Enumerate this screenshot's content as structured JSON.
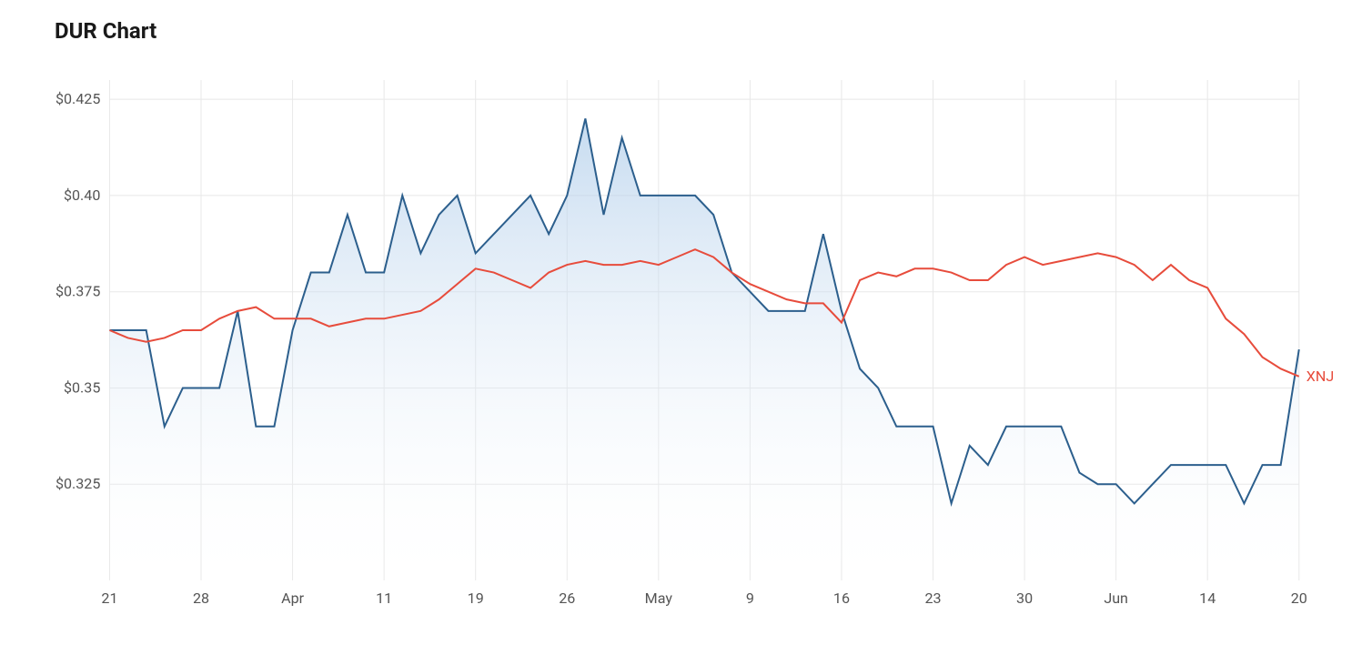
{
  "chart": {
    "title": "DUR Chart",
    "type": "area-line",
    "background_color": "#ffffff",
    "grid_color": "#e8e8e8",
    "text_color": "#555555",
    "title_color": "#1a1a1a",
    "title_fontsize": 24,
    "label_fontsize": 16,
    "y_axis": {
      "min": 0.3,
      "max": 0.43,
      "ticks": [
        0.325,
        0.35,
        0.375,
        0.4,
        0.425
      ],
      "tick_labels": [
        "$0.325",
        "$0.35",
        "$0.375",
        "$0.40",
        "$0.425"
      ]
    },
    "x_axis": {
      "ticks": [
        0,
        5,
        10,
        15,
        20,
        25,
        30,
        35,
        40,
        45,
        50,
        55,
        60,
        65
      ],
      "tick_labels": [
        "21",
        "28",
        "Apr",
        "11",
        "19",
        "26",
        "May",
        "9",
        "16",
        "23",
        "30",
        "Jun",
        "14",
        "20"
      ]
    },
    "series_primary": {
      "name": "DUR",
      "type": "area",
      "line_color": "#2c5f8d",
      "fill_color_top": "#a8c8e8",
      "fill_color_bottom": "#ffffff",
      "fill_opacity": 0.6,
      "line_width": 2,
      "data": [
        0.365,
        0.365,
        0.365,
        0.34,
        0.35,
        0.35,
        0.35,
        0.37,
        0.34,
        0.34,
        0.365,
        0.38,
        0.38,
        0.395,
        0.38,
        0.38,
        0.4,
        0.385,
        0.395,
        0.4,
        0.385,
        0.39,
        0.395,
        0.4,
        0.39,
        0.4,
        0.42,
        0.395,
        0.415,
        0.4,
        0.4,
        0.4,
        0.4,
        0.395,
        0.38,
        0.375,
        0.37,
        0.37,
        0.37,
        0.39,
        0.37,
        0.355,
        0.35,
        0.34,
        0.34,
        0.34,
        0.32,
        0.335,
        0.33,
        0.34,
        0.34,
        0.34,
        0.34,
        0.328,
        0.325,
        0.325,
        0.32,
        0.325,
        0.33,
        0.33,
        0.33,
        0.33,
        0.32,
        0.33,
        0.33,
        0.36
      ]
    },
    "series_secondary": {
      "name": "XNJ",
      "label": "XNJ",
      "type": "line",
      "line_color": "#e74c3c",
      "line_width": 2,
      "data": [
        0.365,
        0.363,
        0.362,
        0.363,
        0.365,
        0.365,
        0.368,
        0.37,
        0.371,
        0.368,
        0.368,
        0.368,
        0.366,
        0.367,
        0.368,
        0.368,
        0.369,
        0.37,
        0.373,
        0.377,
        0.381,
        0.38,
        0.378,
        0.376,
        0.38,
        0.382,
        0.383,
        0.382,
        0.382,
        0.383,
        0.382,
        0.384,
        0.386,
        0.384,
        0.38,
        0.377,
        0.375,
        0.373,
        0.372,
        0.372,
        0.367,
        0.378,
        0.38,
        0.379,
        0.381,
        0.381,
        0.38,
        0.378,
        0.378,
        0.382,
        0.384,
        0.382,
        0.383,
        0.384,
        0.385,
        0.384,
        0.382,
        0.378,
        0.382,
        0.378,
        0.376,
        0.368,
        0.364,
        0.358,
        0.355,
        0.353
      ]
    }
  }
}
